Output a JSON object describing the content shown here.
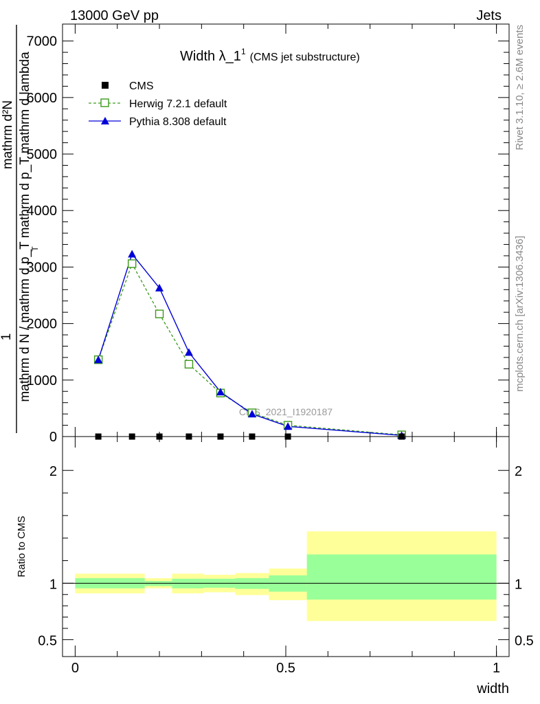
{
  "header": {
    "left": "13000 GeV pp",
    "right": "Jets"
  },
  "side_labels": {
    "rivet": "Rivet 3.1.10, ≥ 2.6M events",
    "mcplots": "mcplots.cern.ch [arXiv:1306.3436]"
  },
  "watermark": "CMS_2021_I1920187",
  "colors": {
    "cms": "#000000",
    "herwig": "#3a9a1a",
    "pythia": "#0000d8",
    "band_outer": "#ffff99",
    "band_inner": "#99ff99"
  },
  "chart_data": [
    {
      "type": "line",
      "title": "Width λ_1",
      "title_sup": "1",
      "title_suffix": "(CMS jet substructure)",
      "ylabel_numerator": "mathrm d²N",
      "ylabel_main": "mathrm d N / mathrm d p_T mathrm d p_T mathrm d lambda",
      "ylabel_prefix": "1",
      "ylabel_sub": "T",
      "xlim": [
        -0.03,
        1.03
      ],
      "ylim": [
        0,
        7300
      ],
      "y_ticks": [
        {
          "value": 0,
          "label": "0"
        },
        {
          "value": 1000,
          "label": "1000"
        },
        {
          "value": 2000,
          "label": "2000"
        },
        {
          "value": 3000,
          "label": "3000"
        },
        {
          "value": 4000,
          "label": "4000"
        },
        {
          "value": 5000,
          "label": "5000"
        },
        {
          "value": 6000,
          "label": "6000"
        },
        {
          "value": 7000,
          "label": "7000"
        }
      ],
      "legend_position": "top-left",
      "series": [
        {
          "name": "CMS",
          "style": "square-marker",
          "x": [
            0.055,
            0.135,
            0.2,
            0.27,
            0.345,
            0.42,
            0.505,
            0.775
          ],
          "y": [
            0,
            0,
            0,
            0,
            0,
            0,
            0,
            0
          ]
        },
        {
          "name": "Herwig 7.2.1 default",
          "style": "dashed-open-square",
          "x": [
            0.055,
            0.135,
            0.2,
            0.27,
            0.345,
            0.42,
            0.505,
            0.775
          ],
          "y": [
            1360,
            3060,
            2170,
            1280,
            770,
            420,
            200,
            30
          ]
        },
        {
          "name": "Pythia 8.308 default",
          "style": "solid-triangle",
          "x": [
            0.055,
            0.135,
            0.2,
            0.27,
            0.345,
            0.42,
            0.505,
            0.775
          ],
          "y": [
            1360,
            3230,
            2630,
            1490,
            790,
            400,
            180,
            20
          ]
        }
      ]
    },
    {
      "type": "area",
      "ylabel": "Ratio to CMS",
      "xlabel": "width",
      "xlim": [
        -0.03,
        1.03
      ],
      "ylim": [
        0.35,
        2.3
      ],
      "y_ticks": [
        {
          "value": 0.5,
          "label": "0.5"
        },
        {
          "value": 1,
          "label": "1"
        },
        {
          "value": 2,
          "label": "2"
        }
      ],
      "x_ticks": [
        {
          "value": 0,
          "label": "0"
        },
        {
          "value": 0.5,
          "label": "0.5"
        },
        {
          "value": 1,
          "label": "1"
        }
      ],
      "reference_line": 1,
      "bands": [
        {
          "x0": 0.0,
          "x1": 0.165,
          "outer": [
            0.91,
            1.085
          ],
          "inner": [
            0.955,
            1.045
          ]
        },
        {
          "x0": 0.165,
          "x1": 0.23,
          "outer": [
            0.955,
            1.045
          ],
          "inner": [
            0.975,
            1.02
          ]
        },
        {
          "x0": 0.23,
          "x1": 0.305,
          "outer": [
            0.91,
            1.085
          ],
          "inner": [
            0.955,
            1.04
          ]
        },
        {
          "x0": 0.305,
          "x1": 0.38,
          "outer": [
            0.92,
            1.075
          ],
          "inner": [
            0.96,
            1.04
          ]
        },
        {
          "x0": 0.38,
          "x1": 0.46,
          "outer": [
            0.895,
            1.09
          ],
          "inner": [
            0.95,
            1.045
          ]
        },
        {
          "x0": 0.46,
          "x1": 0.55,
          "outer": [
            0.85,
            1.13
          ],
          "inner": [
            0.925,
            1.07
          ]
        },
        {
          "x0": 0.55,
          "x1": 1.0,
          "outer": [
            0.665,
            1.46
          ],
          "inner": [
            0.855,
            1.255
          ]
        }
      ]
    }
  ]
}
